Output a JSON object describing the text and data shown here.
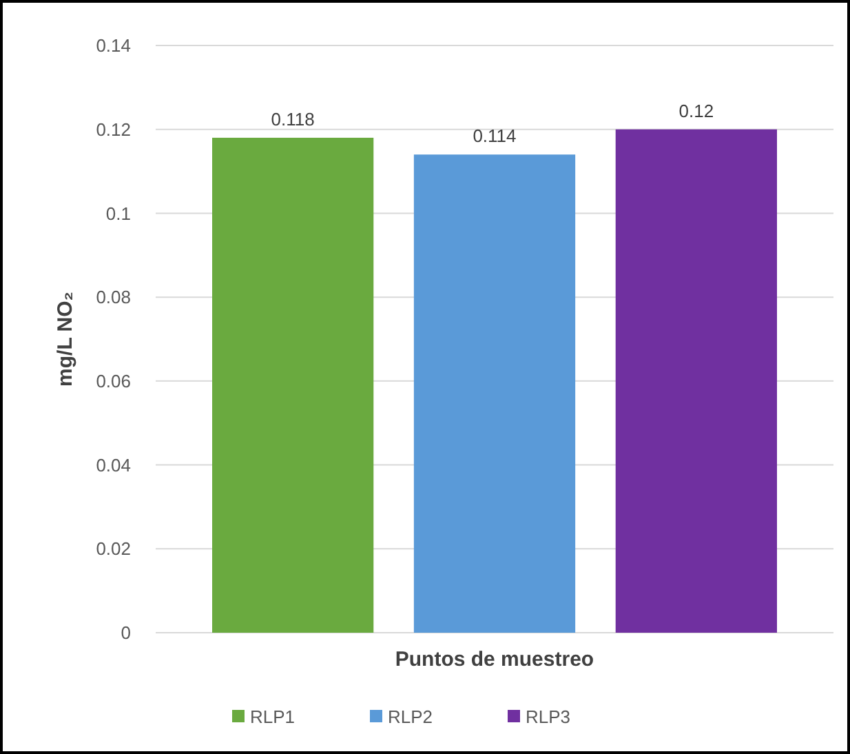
{
  "chart_data": {
    "type": "bar",
    "xlabel": "Puntos de muestreo",
    "ylabel": "mg/L NO₂",
    "categories": [
      null
    ],
    "series": [
      {
        "name": "RLP1",
        "color": "#6aaa3f",
        "values": [
          0.118
        ]
      },
      {
        "name": "RLP2",
        "color": "#5a9ad8",
        "values": [
          0.114
        ]
      },
      {
        "name": "RLP3",
        "color": "#7030a0",
        "values": [
          0.12
        ]
      }
    ],
    "ylim": [
      0,
      0.14
    ],
    "yticks": [
      0,
      0.02,
      0.04,
      0.06,
      0.08,
      0.1,
      0.12,
      0.14
    ],
    "grid": "y",
    "legend": "bottom",
    "data_labels": true
  }
}
